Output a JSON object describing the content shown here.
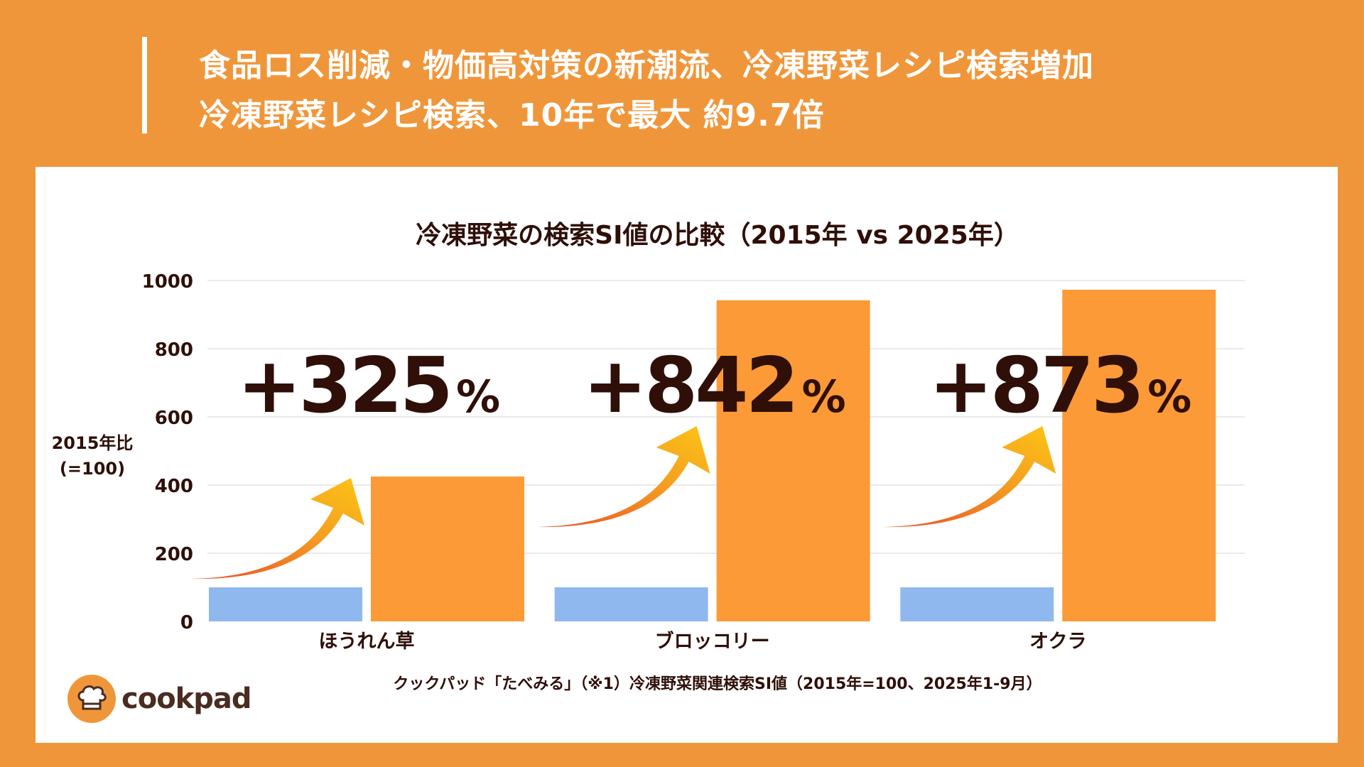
{
  "header": {
    "line1": "食品ロス削減・物価高対策の新潮流、冷凍野菜レシピ検索増加",
    "line2": "冷凍野菜レシピ検索、10年で最大 約9.7倍"
  },
  "chart_data": {
    "type": "bar",
    "title": "冷凍野菜の検索SI値の比較（2015年 vs 2025年）",
    "ylabel": "2015年比",
    "ylabel2": "(=100)",
    "ylim": [
      0,
      1000
    ],
    "yticks": [
      "0",
      "200",
      "400",
      "600",
      "800",
      "1000"
    ],
    "grid": true,
    "categories": [
      "ほうれん草",
      "ブロッコリー",
      "オクラ"
    ],
    "series": [
      {
        "values": [
          100,
          100,
          100
        ],
        "color": "#8fb8ee"
      },
      {
        "values": [
          425,
          942,
          973
        ],
        "color": "#fb9a37"
      }
    ],
    "annotations": [
      "+325",
      "+842",
      "+873"
    ],
    "annotation_unit": "%",
    "source": "クックパッド「たべみる」（※1）冷凍野菜関連検索SI値（2015年=100、2025年1-9月）"
  },
  "logo": {
    "text": "cookpad"
  },
  "colors": {
    "background": "#f0963a",
    "text": "#2f0f08"
  }
}
